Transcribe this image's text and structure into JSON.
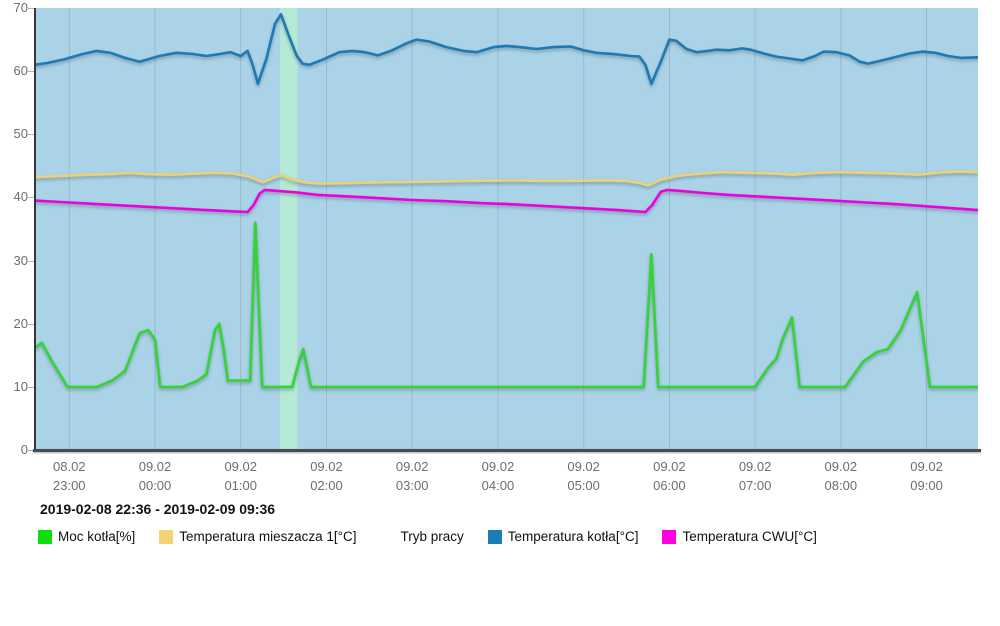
{
  "range_label": "2019-02-08 22:36 - 2019-02-09 09:36",
  "legend": {
    "items": [
      {
        "label": "Moc kotła[%]",
        "color": "#0ddf0d",
        "slug": "moc-kotla"
      },
      {
        "label": "Temperatura mieszacza 1[°C]",
        "color": "#f5d371",
        "slug": "temperatura-mieszacza-1"
      },
      {
        "label": "Tryb pracy",
        "color": "",
        "slug": "tryb-pracy"
      },
      {
        "label": "Temperatura kotła[°C]",
        "color": "#1b7db8",
        "slug": "temperatura-kotla"
      },
      {
        "label": "Temperatura CWU[°C]",
        "color": "#ff00e1",
        "slug": "temperatura-cwu"
      }
    ]
  },
  "chart_data": {
    "type": "line",
    "title": "",
    "xlabel": "",
    "ylabel": "",
    "x_unit": "hours since 2019-02-08 22:36",
    "x_range": [
      0,
      11
    ],
    "y_range": [
      0,
      70
    ],
    "grid": "vertical-only",
    "legend_position": "bottom",
    "plot_bg": "#abd3e7",
    "gridline_color": "#9cb8cc",
    "y_ticks": [
      0,
      10,
      20,
      30,
      40,
      50,
      60,
      70
    ],
    "x_ticks": [
      {
        "t": 0.4,
        "date": "08.02",
        "time": "23:00"
      },
      {
        "t": 1.4,
        "date": "09.02",
        "time": "00:00"
      },
      {
        "t": 2.4,
        "date": "09.02",
        "time": "01:00"
      },
      {
        "t": 3.4,
        "date": "09.02",
        "time": "02:00"
      },
      {
        "t": 4.4,
        "date": "09.02",
        "time": "03:00"
      },
      {
        "t": 5.4,
        "date": "09.02",
        "time": "04:00"
      },
      {
        "t": 6.4,
        "date": "09.02",
        "time": "05:00"
      },
      {
        "t": 7.4,
        "date": "09.02",
        "time": "06:00"
      },
      {
        "t": 8.4,
        "date": "09.02",
        "time": "07:00"
      },
      {
        "t": 9.4,
        "date": "09.02",
        "time": "08:00"
      },
      {
        "t": 10.4,
        "date": "09.02",
        "time": "09:00"
      }
    ],
    "highlight_band": {
      "name": "Tryb pracy",
      "t_start": 2.86,
      "t_end": 3.06,
      "color": "#b4ead6"
    },
    "series": [
      {
        "name": "Temperatura mieszacza 1[°C]",
        "slug": "temperatura-mieszacza-1",
        "color": "#edd176",
        "points": [
          [
            0,
            43.2
          ],
          [
            0.3,
            43.4
          ],
          [
            0.6,
            43.6
          ],
          [
            0.9,
            43.7
          ],
          [
            1.1,
            43.9
          ],
          [
            1.3,
            43.7
          ],
          [
            1.6,
            43.6
          ],
          [
            1.9,
            43.8
          ],
          [
            2.1,
            43.9
          ],
          [
            2.3,
            43.8
          ],
          [
            2.5,
            43.3
          ],
          [
            2.66,
            42.4
          ],
          [
            2.8,
            43.2
          ],
          [
            2.88,
            43.5
          ],
          [
            3.0,
            42.8
          ],
          [
            3.15,
            42.4
          ],
          [
            3.3,
            42.2
          ],
          [
            3.6,
            42.25
          ],
          [
            4.0,
            42.4
          ],
          [
            4.4,
            42.45
          ],
          [
            4.8,
            42.55
          ],
          [
            5.2,
            42.65
          ],
          [
            5.6,
            42.7
          ],
          [
            6.0,
            42.6
          ],
          [
            6.4,
            42.65
          ],
          [
            6.7,
            42.7
          ],
          [
            6.9,
            42.6
          ],
          [
            7.05,
            42.3
          ],
          [
            7.15,
            41.9
          ],
          [
            7.3,
            42.8
          ],
          [
            7.45,
            43.3
          ],
          [
            7.6,
            43.6
          ],
          [
            7.8,
            43.8
          ],
          [
            8.0,
            44.0
          ],
          [
            8.3,
            43.9
          ],
          [
            8.6,
            43.8
          ],
          [
            8.85,
            43.6
          ],
          [
            9.1,
            43.9
          ],
          [
            9.4,
            44.0
          ],
          [
            9.7,
            43.9
          ],
          [
            10.0,
            43.8
          ],
          [
            10.3,
            43.6
          ],
          [
            10.6,
            44.0
          ],
          [
            10.8,
            44.1
          ],
          [
            11,
            44.0
          ]
        ]
      },
      {
        "name": "Temperatura CWU[°C]",
        "slug": "temperatura-cwu",
        "color": "#ee00dd",
        "points": [
          [
            0,
            39.5
          ],
          [
            0.4,
            39.2
          ],
          [
            0.8,
            38.9
          ],
          [
            1.2,
            38.6
          ],
          [
            1.6,
            38.3
          ],
          [
            2.0,
            38.0
          ],
          [
            2.3,
            37.8
          ],
          [
            2.48,
            37.7
          ],
          [
            2.55,
            38.8
          ],
          [
            2.62,
            40.6
          ],
          [
            2.68,
            41.2
          ],
          [
            2.85,
            41.0
          ],
          [
            3.05,
            40.8
          ],
          [
            3.3,
            40.4
          ],
          [
            3.6,
            40.2
          ],
          [
            4.0,
            39.9
          ],
          [
            4.4,
            39.6
          ],
          [
            4.8,
            39.4
          ],
          [
            5.2,
            39.1
          ],
          [
            5.6,
            38.9
          ],
          [
            6.0,
            38.6
          ],
          [
            6.4,
            38.3
          ],
          [
            6.8,
            38.0
          ],
          [
            7.0,
            37.8
          ],
          [
            7.12,
            37.7
          ],
          [
            7.2,
            38.8
          ],
          [
            7.3,
            40.9
          ],
          [
            7.38,
            41.2
          ],
          [
            7.55,
            41.0
          ],
          [
            7.8,
            40.7
          ],
          [
            8.1,
            40.4
          ],
          [
            8.5,
            40.1
          ],
          [
            8.9,
            39.8
          ],
          [
            9.3,
            39.5
          ],
          [
            9.7,
            39.2
          ],
          [
            10.1,
            38.9
          ],
          [
            10.5,
            38.5
          ],
          [
            10.8,
            38.2
          ],
          [
            11,
            38.0
          ]
        ]
      },
      {
        "name": "Temperatura kotła[°C]",
        "slug": "temperatura-kotla",
        "color": "#1d7ab3",
        "points": [
          [
            0,
            61.0
          ],
          [
            0.15,
            61.3
          ],
          [
            0.35,
            61.9
          ],
          [
            0.55,
            62.7
          ],
          [
            0.72,
            63.2
          ],
          [
            0.88,
            62.9
          ],
          [
            1.05,
            62.1
          ],
          [
            1.22,
            61.5
          ],
          [
            1.45,
            62.4
          ],
          [
            1.65,
            62.9
          ],
          [
            1.85,
            62.7
          ],
          [
            2.0,
            62.4
          ],
          [
            2.15,
            62.7
          ],
          [
            2.28,
            63.0
          ],
          [
            2.4,
            62.4
          ],
          [
            2.48,
            63.2
          ],
          [
            2.54,
            61.0
          ],
          [
            2.6,
            58.0
          ],
          [
            2.7,
            62.0
          ],
          [
            2.8,
            67.5
          ],
          [
            2.87,
            69.0
          ],
          [
            2.95,
            66.0
          ],
          [
            3.05,
            62.5
          ],
          [
            3.12,
            61.2
          ],
          [
            3.2,
            61.0
          ],
          [
            3.35,
            61.8
          ],
          [
            3.55,
            63.0
          ],
          [
            3.7,
            63.2
          ],
          [
            3.85,
            63.0
          ],
          [
            4.0,
            62.5
          ],
          [
            4.15,
            63.2
          ],
          [
            4.35,
            64.5
          ],
          [
            4.45,
            65.0
          ],
          [
            4.6,
            64.7
          ],
          [
            4.8,
            63.8
          ],
          [
            5.0,
            63.2
          ],
          [
            5.15,
            63.0
          ],
          [
            5.35,
            63.8
          ],
          [
            5.5,
            64.0
          ],
          [
            5.65,
            63.8
          ],
          [
            5.85,
            63.5
          ],
          [
            6.05,
            63.8
          ],
          [
            6.25,
            63.9
          ],
          [
            6.4,
            63.3
          ],
          [
            6.55,
            62.9
          ],
          [
            6.75,
            62.7
          ],
          [
            6.95,
            62.4
          ],
          [
            7.05,
            62.3
          ],
          [
            7.12,
            61.0
          ],
          [
            7.19,
            58.0
          ],
          [
            7.3,
            61.5
          ],
          [
            7.4,
            65.0
          ],
          [
            7.48,
            64.8
          ],
          [
            7.6,
            63.5
          ],
          [
            7.72,
            63.0
          ],
          [
            7.85,
            63.2
          ],
          [
            7.95,
            63.4
          ],
          [
            8.1,
            63.3
          ],
          [
            8.25,
            63.6
          ],
          [
            8.35,
            63.4
          ],
          [
            8.5,
            62.8
          ],
          [
            8.65,
            62.3
          ],
          [
            8.8,
            62.0
          ],
          [
            8.95,
            61.7
          ],
          [
            9.1,
            62.4
          ],
          [
            9.2,
            63.1
          ],
          [
            9.35,
            63.0
          ],
          [
            9.5,
            62.5
          ],
          [
            9.62,
            61.5
          ],
          [
            9.72,
            61.2
          ],
          [
            9.85,
            61.6
          ],
          [
            10.0,
            62.1
          ],
          [
            10.2,
            62.8
          ],
          [
            10.35,
            63.1
          ],
          [
            10.5,
            62.9
          ],
          [
            10.65,
            62.4
          ],
          [
            10.8,
            62.1
          ],
          [
            11,
            62.2
          ]
        ]
      },
      {
        "name": "Moc kotła[%]",
        "slug": "moc-kotla",
        "color": "#33d433",
        "points": [
          [
            0,
            16.2
          ],
          [
            0.08,
            17
          ],
          [
            0.2,
            14
          ],
          [
            0.38,
            10
          ],
          [
            0.72,
            10
          ],
          [
            0.9,
            11
          ],
          [
            1.05,
            12.5
          ],
          [
            1.22,
            18.5
          ],
          [
            1.32,
            19
          ],
          [
            1.4,
            17.5
          ],
          [
            1.46,
            10
          ],
          [
            1.72,
            10
          ],
          [
            1.9,
            11
          ],
          [
            2.0,
            12
          ],
          [
            2.1,
            19
          ],
          [
            2.15,
            20
          ],
          [
            2.2,
            16
          ],
          [
            2.25,
            11
          ],
          [
            2.45,
            11
          ],
          [
            2.51,
            11
          ],
          [
            2.57,
            36
          ],
          [
            2.65,
            10
          ],
          [
            3.0,
            10
          ],
          [
            3.08,
            14
          ],
          [
            3.13,
            16
          ],
          [
            3.22,
            10
          ],
          [
            7.1,
            10
          ],
          [
            7.19,
            31
          ],
          [
            7.27,
            10
          ],
          [
            8.4,
            10
          ],
          [
            8.55,
            13
          ],
          [
            8.65,
            14.5
          ],
          [
            8.72,
            17.5
          ],
          [
            8.83,
            21
          ],
          [
            8.92,
            10
          ],
          [
            9.45,
            10
          ],
          [
            9.66,
            14
          ],
          [
            9.82,
            15.5
          ],
          [
            9.95,
            16
          ],
          [
            10.1,
            19
          ],
          [
            10.29,
            25
          ],
          [
            10.44,
            10
          ],
          [
            11,
            10
          ]
        ]
      }
    ]
  }
}
